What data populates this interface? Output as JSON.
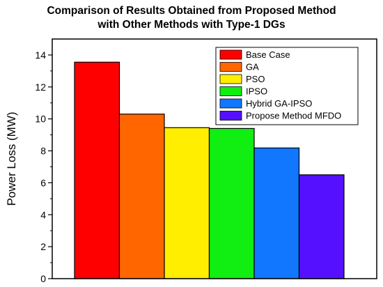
{
  "chart_data": {
    "type": "bar",
    "title_line1": "Comparison of Results Obtained from Proposed Method",
    "title_line2": "with Other Methods with Type-1 DGs",
    "xlabel": "",
    "ylabel": "Power Loss (MW)",
    "ylim": [
      0,
      15
    ],
    "yticks": [
      0,
      2,
      4,
      6,
      8,
      10,
      12,
      14
    ],
    "ytick_labels": [
      "0",
      "2",
      "4",
      "6",
      "8",
      "10",
      "12",
      "14"
    ],
    "grid": false,
    "legend_position": "top-right",
    "series": [
      {
        "name": "Base Case",
        "value": 13.55,
        "color": "#ff0000"
      },
      {
        "name": "GA",
        "value": 10.3,
        "color": "#ff6600"
      },
      {
        "name": "PSO",
        "value": 9.45,
        "color": "#ffee00"
      },
      {
        "name": "IPSO",
        "value": 9.4,
        "color": "#11ee11"
      },
      {
        "name": "Hybrid GA-IPSO",
        "value": 8.18,
        "color": "#1177ff"
      },
      {
        "name": "Propose Method MFDO",
        "value": 6.5,
        "color": "#5511ff"
      }
    ]
  }
}
